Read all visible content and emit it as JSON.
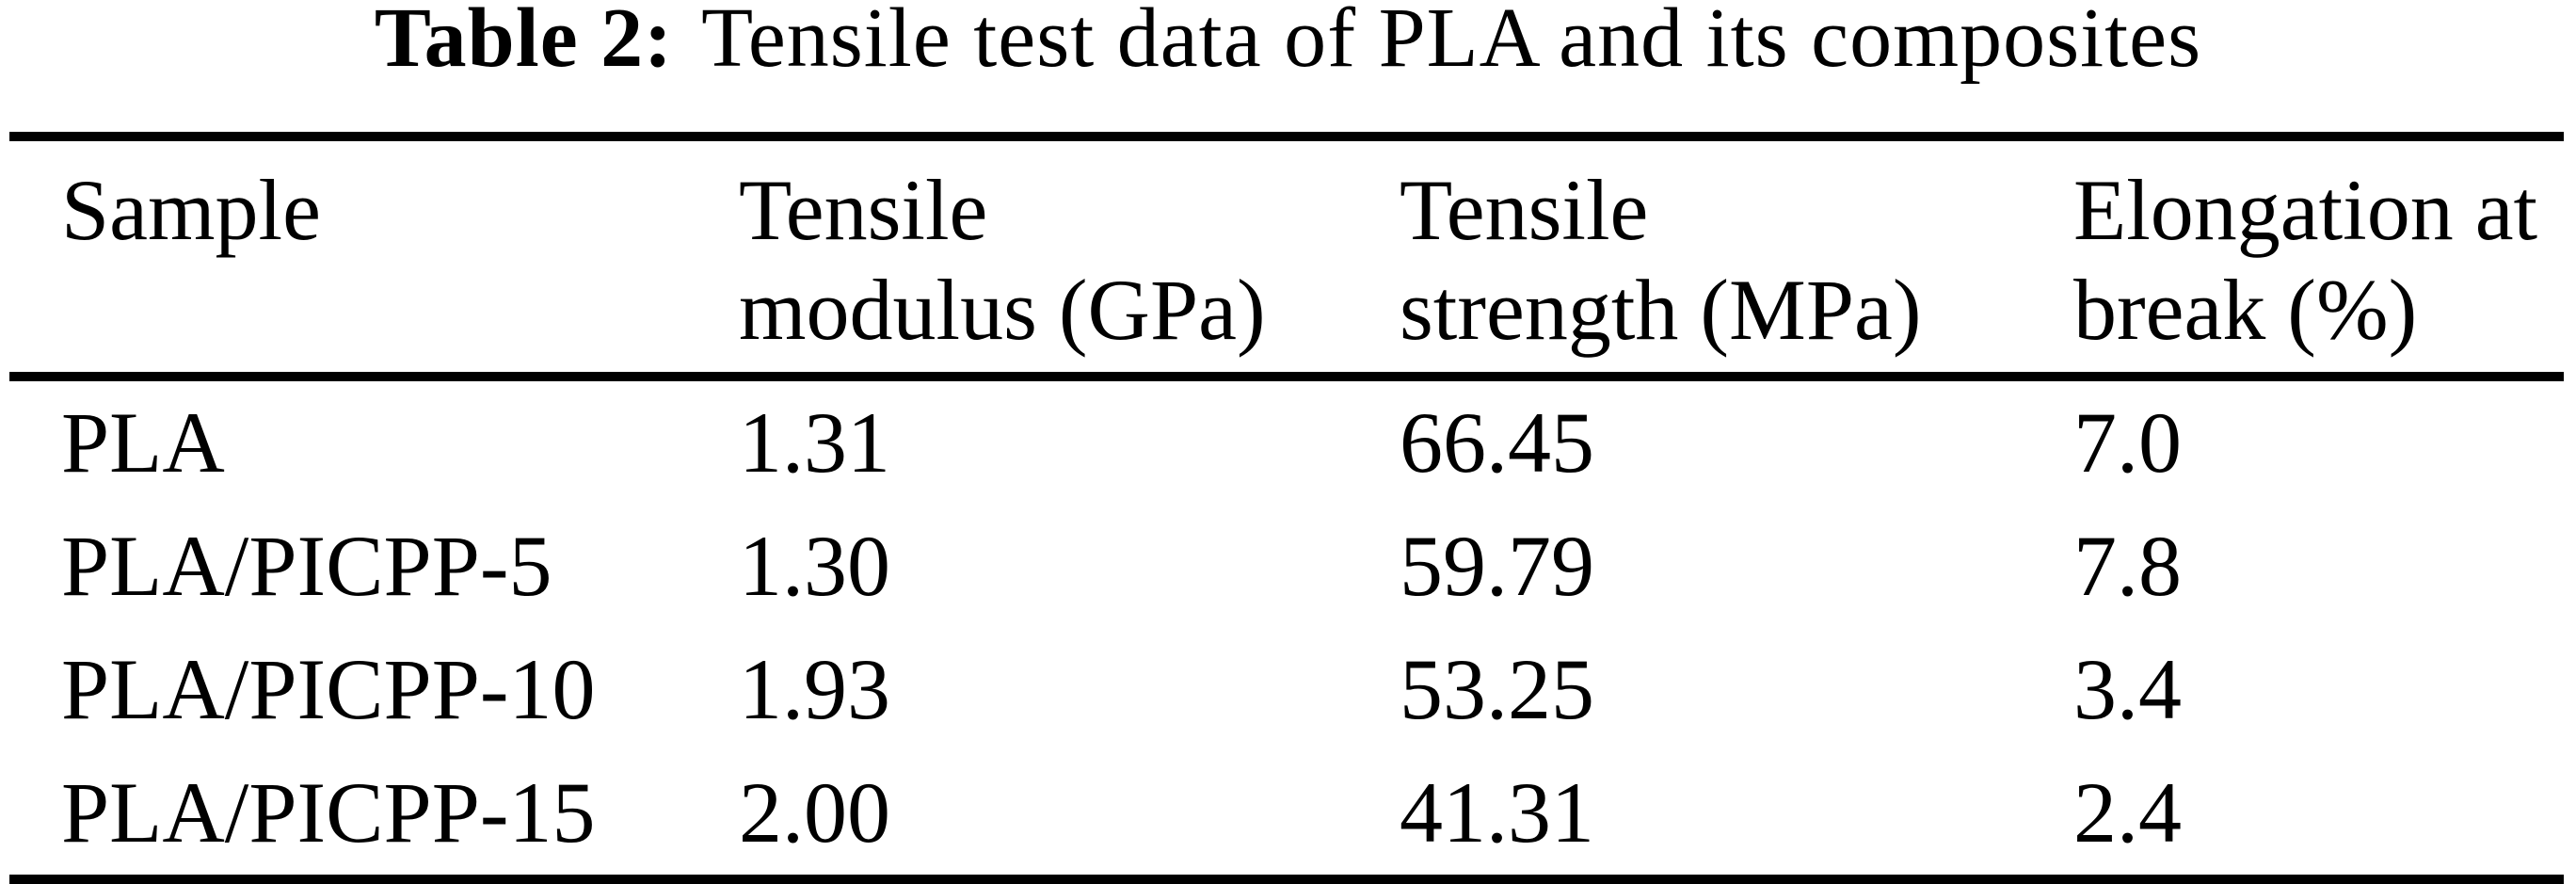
{
  "caption": {
    "label": "Table 2:",
    "text": "Tensile test data of PLA and its composites"
  },
  "table": {
    "columns": [
      {
        "lines": [
          "Sample",
          ""
        ]
      },
      {
        "lines": [
          "Tensile",
          "modulus (GPa)"
        ]
      },
      {
        "lines": [
          "Tensile",
          "strength (MPa)"
        ]
      },
      {
        "lines": [
          "Elongation at",
          "break (%)"
        ]
      }
    ],
    "rows": [
      {
        "sample": "PLA",
        "modulus": "1.31",
        "strength": "66.45",
        "elongation": "7.0"
      },
      {
        "sample": "PLA/PICPP-5",
        "modulus": "1.30",
        "strength": "59.79",
        "elongation": "7.8"
      },
      {
        "sample": "PLA/PICPP-10",
        "modulus": "1.93",
        "strength": "53.25",
        "elongation": "3.4"
      },
      {
        "sample": "PLA/PICPP-15",
        "modulus": "2.00",
        "strength": "41.31",
        "elongation": "2.4"
      }
    ]
  },
  "colors": {
    "ink": "#000000",
    "paper": "#ffffff"
  }
}
